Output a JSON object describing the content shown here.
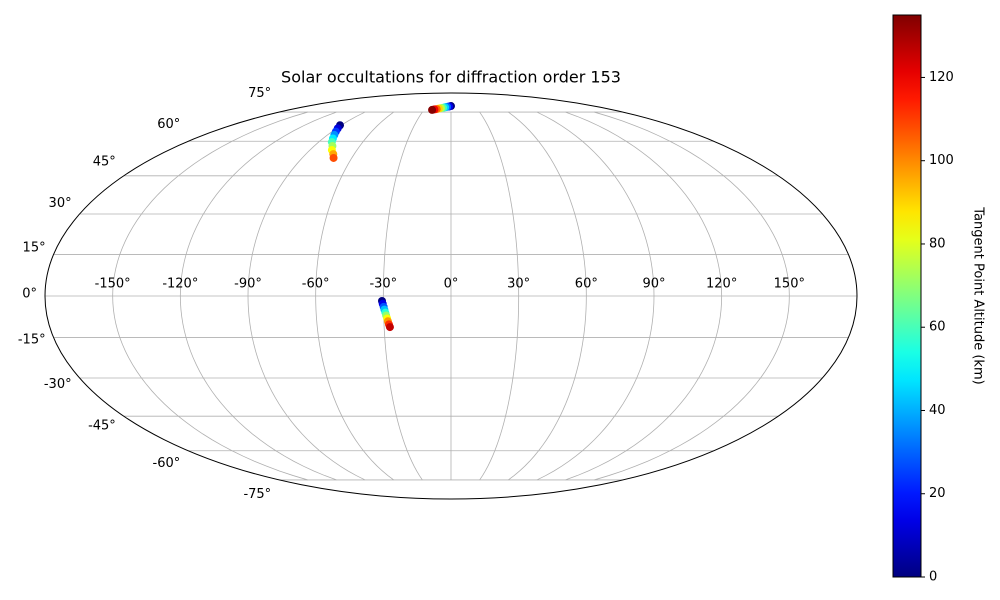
{
  "chart_data": {
    "type": "scatter",
    "projection": "mollweide",
    "title": "Solar occultations for diffraction order 153",
    "xticks": [
      {
        "value": -150,
        "label": "-150°"
      },
      {
        "value": -120,
        "label": "-120°"
      },
      {
        "value": -90,
        "label": "-90°"
      },
      {
        "value": -60,
        "label": "-60°"
      },
      {
        "value": -30,
        "label": "-30°"
      },
      {
        "value": 0,
        "label": "0°"
      },
      {
        "value": 30,
        "label": "30°"
      },
      {
        "value": 60,
        "label": "60°"
      },
      {
        "value": 90,
        "label": "90°"
      },
      {
        "value": 120,
        "label": "120°"
      },
      {
        "value": 150,
        "label": "150°"
      }
    ],
    "yticks": [
      {
        "value": -75,
        "label": "-75°"
      },
      {
        "value": -60,
        "label": "-60°"
      },
      {
        "value": -45,
        "label": "-45°"
      },
      {
        "value": -30,
        "label": "-30°"
      },
      {
        "value": -15,
        "label": "-15°"
      },
      {
        "value": 0,
        "label": "0°"
      },
      {
        "value": 15,
        "label": "15°"
      },
      {
        "value": 30,
        "label": "30°"
      },
      {
        "value": 45,
        "label": "45°"
      },
      {
        "value": 60,
        "label": "60°"
      },
      {
        "value": 75,
        "label": "75°"
      }
    ],
    "grid": true,
    "colormap": "jet",
    "colorbar": {
      "label": "Tangent Point Altitude (km)",
      "clim": [
        0,
        135
      ],
      "ticks": [
        0,
        20,
        40,
        60,
        80,
        100,
        120
      ]
    },
    "series": [
      {
        "x": [
          -91,
          -89,
          -87,
          -85,
          -83,
          -81,
          -78,
          -76,
          -73,
          -71
        ],
        "y": [
          67.8,
          66.2,
          64.6,
          63,
          61.3,
          59.6,
          57.8,
          56,
          54.2,
          52.5
        ],
        "values": [
          0,
          12,
          24,
          36,
          48,
          60,
          72,
          84,
          96,
          108
        ]
      },
      {
        "x": [
          -30.6,
          -30.3,
          -29.9,
          -29.6,
          -29.2,
          -28.9,
          -28.5,
          -28.2,
          -27.8,
          -27.4
        ],
        "y": [
          -1.8,
          -2.8,
          -3.9,
          -4.9,
          -6,
          -7,
          -8.1,
          -9.1,
          -10.2,
          -11.2
        ],
        "values": [
          0,
          14,
          28,
          42,
          56,
          70,
          84,
          98,
          112,
          126
        ]
      },
      {
        "x": [
          0,
          -2.3,
          -4.7,
          -7,
          -9.3,
          -11.7,
          -14,
          -16.3,
          -18.7,
          -21
        ],
        "y": [
          78.7,
          78.4,
          78.2,
          77.9,
          77.6,
          77.4,
          77.1,
          76.8,
          76.6,
          76.3
        ],
        "values": [
          0,
          15,
          30,
          45,
          60,
          75,
          90,
          105,
          120,
          134
        ]
      }
    ]
  }
}
